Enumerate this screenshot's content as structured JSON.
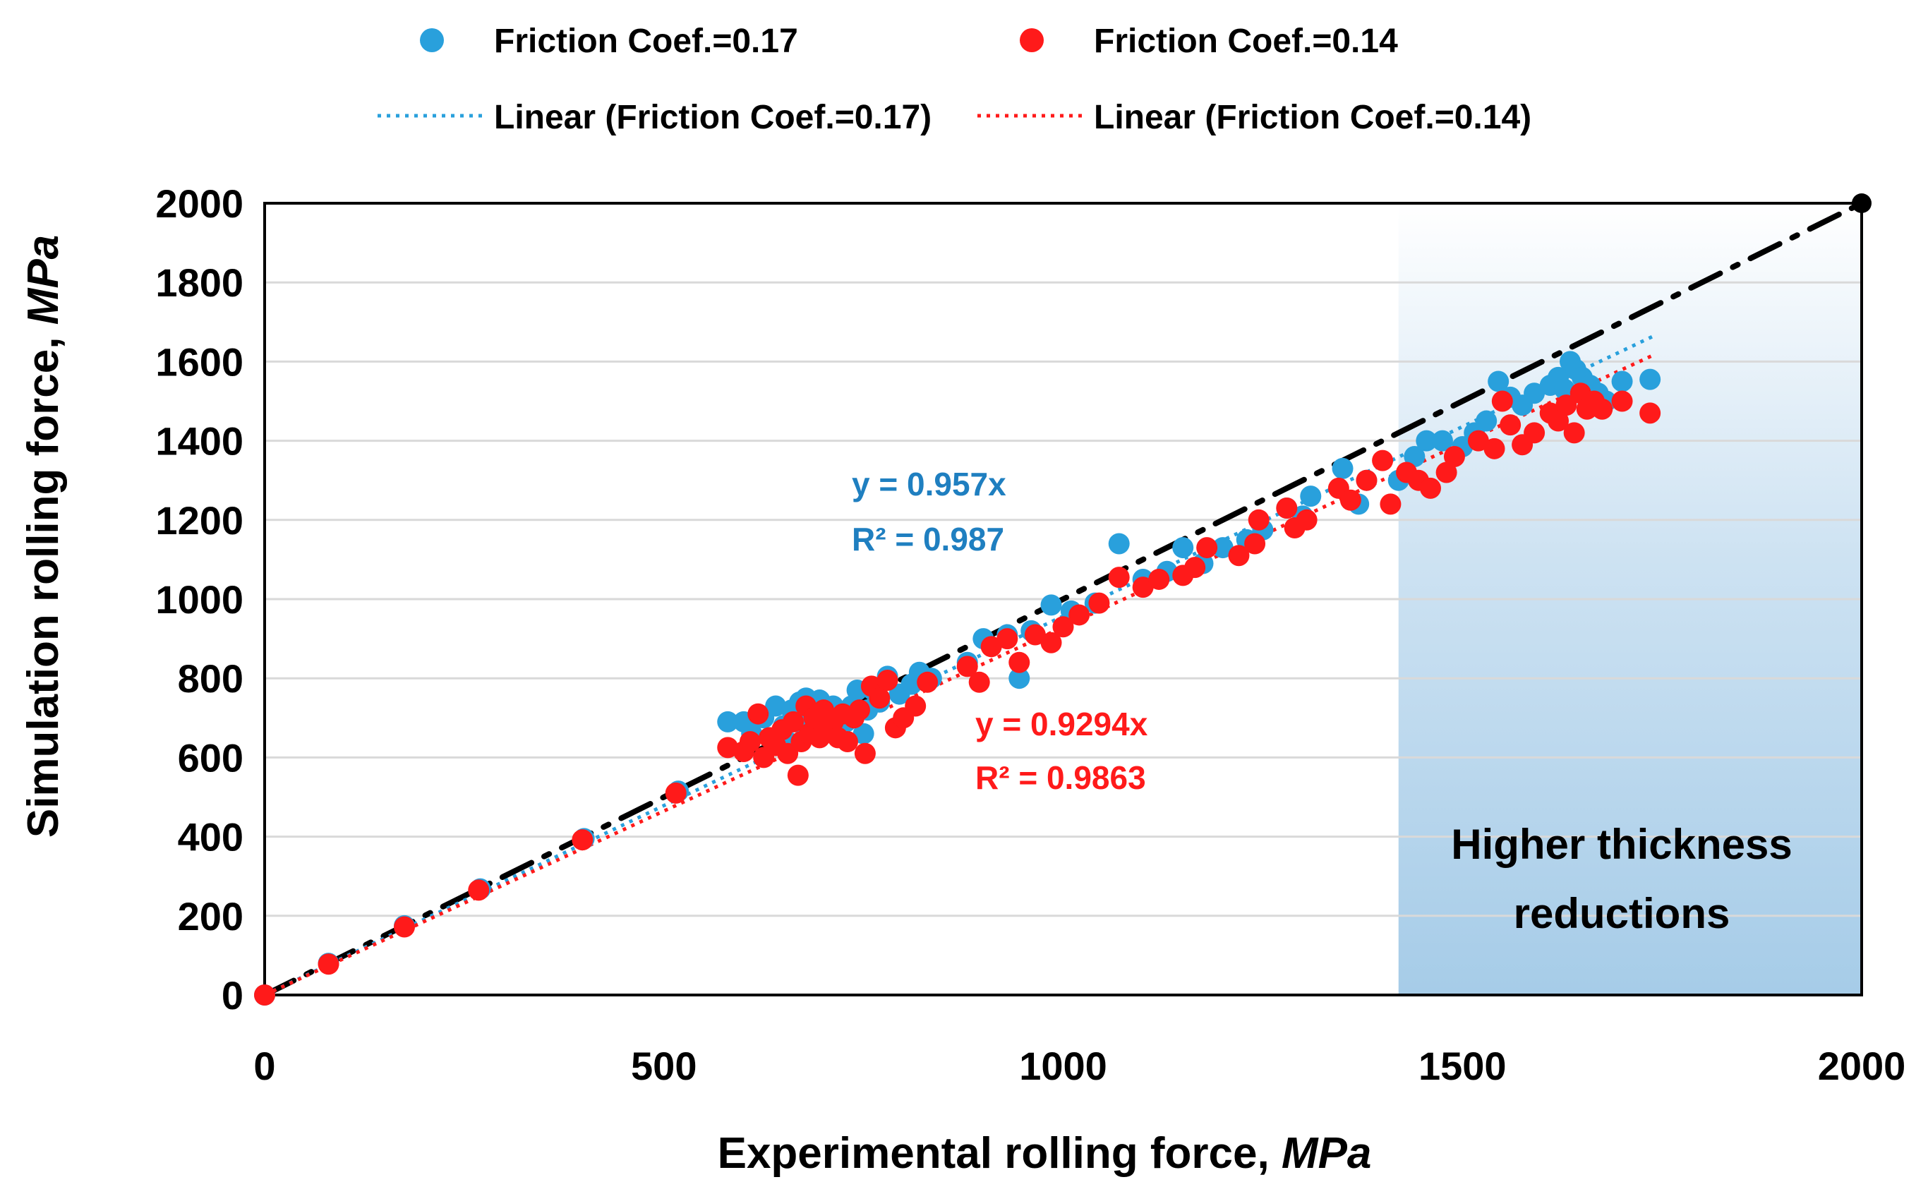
{
  "chart_data": {
    "type": "scatter",
    "xlabel": "Experimental rolling force,",
    "xlabel_unit": "MPa",
    "ylabel": "Simulation rolling force,",
    "ylabel_unit": "MPa",
    "xlim": [
      0,
      2000
    ],
    "ylim": [
      0,
      2000
    ],
    "x_ticks": [
      "0",
      "500",
      "1000",
      "1500",
      "2000"
    ],
    "y_ticks": [
      "0",
      "200",
      "400",
      "600",
      "800",
      "1000",
      "1200",
      "1400",
      "1600",
      "1800",
      "2000"
    ],
    "grid": "horizontal",
    "legend_position": "top",
    "legend": {
      "series_a": "Friction Coef.=0.17",
      "series_b": "Friction Coef.=0.14",
      "trend_a": "Linear (Friction Coef.=0.17)",
      "trend_b": "Linear (Friction Coef.=0.14)"
    },
    "colors": {
      "series_a": "#29a0dc",
      "series_b": "#ff1a1a",
      "reference": "#000000",
      "region": "#a6cce8"
    },
    "region": {
      "x_range": [
        1420,
        2000
      ],
      "label_line1": "Higher thickness",
      "label_line2": "reductions"
    },
    "annotations": {
      "a_eq": "y = 0.957x",
      "a_r2": "R² = 0.987",
      "b_eq": "y = 0.9294x",
      "b_r2": "R² = 0.9863"
    },
    "reference_line": {
      "slope": 1,
      "x_range": [
        0,
        2000
      ]
    },
    "series": [
      {
        "name": "Friction Coef.=0.17",
        "trend_slope": 0.957,
        "trend_x_range": [
          0,
          1740
        ],
        "points": [
          [
            0,
            0
          ],
          [
            80,
            80
          ],
          [
            175,
            175
          ],
          [
            270,
            268
          ],
          [
            400,
            395
          ],
          [
            518,
            515
          ],
          [
            580,
            690
          ],
          [
            600,
            690
          ],
          [
            610,
            660
          ],
          [
            625,
            700
          ],
          [
            640,
            730
          ],
          [
            650,
            680
          ],
          [
            655,
            640
          ],
          [
            660,
            720
          ],
          [
            665,
            690
          ],
          [
            670,
            740
          ],
          [
            678,
            750
          ],
          [
            685,
            700
          ],
          [
            690,
            680
          ],
          [
            695,
            745
          ],
          [
            700,
            710
          ],
          [
            705,
            690
          ],
          [
            712,
            730
          ],
          [
            720,
            700
          ],
          [
            728,
            690
          ],
          [
            735,
            730
          ],
          [
            742,
            770
          ],
          [
            750,
            660
          ],
          [
            755,
            720
          ],
          [
            762,
            770
          ],
          [
            770,
            740
          ],
          [
            780,
            805
          ],
          [
            795,
            760
          ],
          [
            810,
            785
          ],
          [
            820,
            815
          ],
          [
            835,
            800
          ],
          [
            880,
            840
          ],
          [
            900,
            900
          ],
          [
            930,
            910
          ],
          [
            945,
            800
          ],
          [
            960,
            920
          ],
          [
            985,
            985
          ],
          [
            1010,
            970
          ],
          [
            1040,
            990
          ],
          [
            1070,
            1140
          ],
          [
            1100,
            1050
          ],
          [
            1130,
            1070
          ],
          [
            1150,
            1130
          ],
          [
            1175,
            1090
          ],
          [
            1200,
            1130
          ],
          [
            1230,
            1150
          ],
          [
            1250,
            1175
          ],
          [
            1280,
            1230
          ],
          [
            1300,
            1210
          ],
          [
            1310,
            1260
          ],
          [
            1350,
            1330
          ],
          [
            1370,
            1240
          ],
          [
            1380,
            1300
          ],
          [
            1420,
            1300
          ],
          [
            1440,
            1360
          ],
          [
            1455,
            1400
          ],
          [
            1475,
            1400
          ],
          [
            1500,
            1385
          ],
          [
            1515,
            1420
          ],
          [
            1530,
            1450
          ],
          [
            1545,
            1550
          ],
          [
            1560,
            1510
          ],
          [
            1575,
            1490
          ],
          [
            1590,
            1520
          ],
          [
            1610,
            1540
          ],
          [
            1620,
            1560
          ],
          [
            1628,
            1530
          ],
          [
            1635,
            1600
          ],
          [
            1642,
            1580
          ],
          [
            1650,
            1560
          ],
          [
            1660,
            1540
          ],
          [
            1670,
            1520
          ],
          [
            1680,
            1500
          ],
          [
            1700,
            1550
          ],
          [
            1735,
            1555
          ]
        ]
      },
      {
        "name": "Friction Coef.=0.14",
        "trend_slope": 0.9294,
        "trend_x_range": [
          0,
          1740
        ],
        "points": [
          [
            0,
            0
          ],
          [
            80,
            78
          ],
          [
            175,
            172
          ],
          [
            268,
            265
          ],
          [
            398,
            392
          ],
          [
            515,
            510
          ],
          [
            580,
            625
          ],
          [
            600,
            615
          ],
          [
            608,
            640
          ],
          [
            618,
            710
          ],
          [
            625,
            600
          ],
          [
            632,
            650
          ],
          [
            640,
            630
          ],
          [
            648,
            670
          ],
          [
            655,
            610
          ],
          [
            662,
            690
          ],
          [
            668,
            555
          ],
          [
            672,
            640
          ],
          [
            678,
            730
          ],
          [
            682,
            660
          ],
          [
            688,
            700
          ],
          [
            695,
            650
          ],
          [
            700,
            720
          ],
          [
            706,
            680
          ],
          [
            712,
            690
          ],
          [
            718,
            650
          ],
          [
            724,
            710
          ],
          [
            730,
            640
          ],
          [
            738,
            700
          ],
          [
            745,
            720
          ],
          [
            752,
            610
          ],
          [
            760,
            780
          ],
          [
            770,
            750
          ],
          [
            780,
            795
          ],
          [
            790,
            675
          ],
          [
            800,
            700
          ],
          [
            815,
            730
          ],
          [
            830,
            790
          ],
          [
            880,
            830
          ],
          [
            895,
            790
          ],
          [
            910,
            880
          ],
          [
            930,
            900
          ],
          [
            945,
            840
          ],
          [
            965,
            910
          ],
          [
            985,
            890
          ],
          [
            1000,
            930
          ],
          [
            1020,
            960
          ],
          [
            1045,
            990
          ],
          [
            1070,
            1055
          ],
          [
            1100,
            1030
          ],
          [
            1120,
            1050
          ],
          [
            1150,
            1060
          ],
          [
            1165,
            1080
          ],
          [
            1180,
            1130
          ],
          [
            1220,
            1110
          ],
          [
            1240,
            1140
          ],
          [
            1245,
            1200
          ],
          [
            1280,
            1230
          ],
          [
            1290,
            1180
          ],
          [
            1305,
            1200
          ],
          [
            1345,
            1280
          ],
          [
            1360,
            1250
          ],
          [
            1380,
            1300
          ],
          [
            1400,
            1350
          ],
          [
            1410,
            1240
          ],
          [
            1430,
            1320
          ],
          [
            1445,
            1300
          ],
          [
            1460,
            1280
          ],
          [
            1480,
            1320
          ],
          [
            1490,
            1360
          ],
          [
            1520,
            1400
          ],
          [
            1540,
            1380
          ],
          [
            1550,
            1500
          ],
          [
            1560,
            1440
          ],
          [
            1575,
            1390
          ],
          [
            1590,
            1420
          ],
          [
            1610,
            1470
          ],
          [
            1620,
            1450
          ],
          [
            1630,
            1490
          ],
          [
            1640,
            1420
          ],
          [
            1648,
            1520
          ],
          [
            1656,
            1480
          ],
          [
            1665,
            1500
          ],
          [
            1675,
            1480
          ],
          [
            1700,
            1500
          ],
          [
            1735,
            1470
          ]
        ]
      }
    ]
  }
}
